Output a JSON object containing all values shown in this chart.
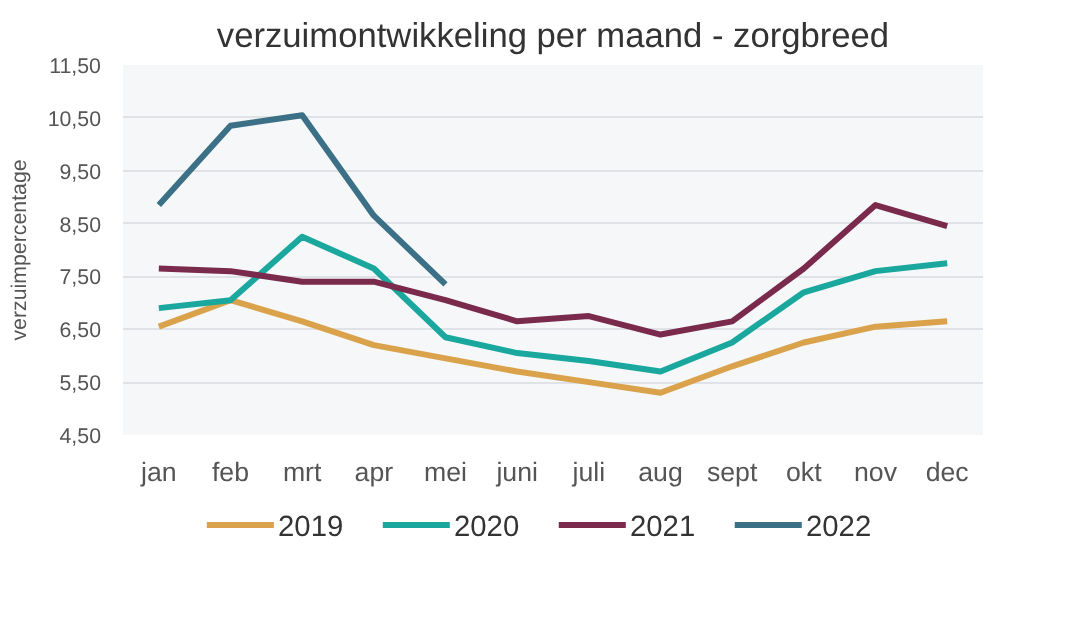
{
  "chart_data": {
    "type": "line",
    "title": "verzuimontwikkeling per maand - zorgbreed",
    "ylabel": "verzuimpercentage",
    "categories": [
      "jan",
      "feb",
      "mrt",
      "apr",
      "mei",
      "juni",
      "juli",
      "aug",
      "sept",
      "okt",
      "nov",
      "dec"
    ],
    "ylim": [
      4.5,
      11.5
    ],
    "yticks": [
      {
        "value": 4.5,
        "label": "4,50"
      },
      {
        "value": 5.5,
        "label": "5,50"
      },
      {
        "value": 6.5,
        "label": "6,50"
      },
      {
        "value": 7.5,
        "label": "7,50"
      },
      {
        "value": 8.5,
        "label": "8,50"
      },
      {
        "value": 9.5,
        "label": "9,50"
      },
      {
        "value": 10.5,
        "label": "10,50"
      },
      {
        "value": 11.5,
        "label": "11,50"
      }
    ],
    "grid": "y",
    "legend": "bottom",
    "marker": "none",
    "line_style": "solid",
    "series": [
      {
        "name": "2019",
        "color": "#dba24c",
        "values": [
          6.55,
          7.05,
          6.65,
          6.2,
          5.95,
          5.7,
          5.5,
          5.3,
          5.8,
          6.25,
          6.55,
          6.65
        ]
      },
      {
        "name": "2020",
        "color": "#1aa89e",
        "values": [
          6.9,
          7.05,
          8.25,
          7.65,
          6.35,
          6.05,
          5.9,
          5.7,
          6.25,
          7.2,
          7.6,
          7.75
        ]
      },
      {
        "name": "2021",
        "color": "#7a2a4c",
        "values": [
          7.65,
          7.6,
          7.4,
          7.4,
          7.05,
          6.65,
          6.75,
          6.4,
          6.65,
          7.65,
          8.85,
          8.45
        ]
      },
      {
        "name": "2022",
        "color": "#3b7087",
        "values": [
          8.85,
          10.35,
          10.55,
          8.65,
          7.35,
          null,
          null,
          null,
          null,
          null,
          null,
          null
        ]
      }
    ]
  }
}
